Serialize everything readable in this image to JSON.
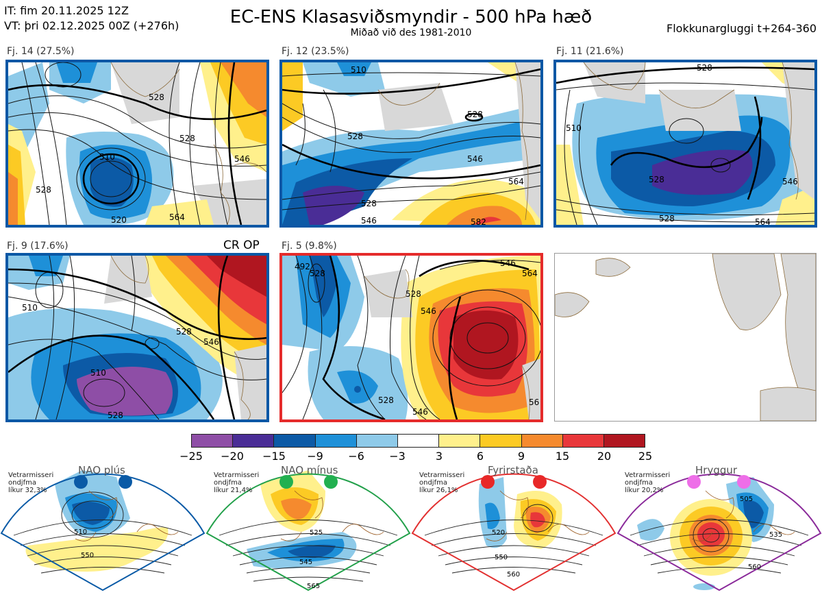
{
  "header": {
    "it_line": "IT: fim 20.11.2025 12Z",
    "vt_line": "VT: þri 02.12.2025 00Z  (+276h)",
    "title": "EC-ENS Klasasviðsmyndir - 500 hPa hæð",
    "subtitle": "Miðað við des 1981-2010",
    "window": "Flokkunargluggi t+264-360"
  },
  "panels": [
    {
      "label": "Fj. 14 (27.5%)",
      "contours": [
        "510",
        "528",
        "528",
        "528",
        "546",
        "564",
        "520"
      ]
    },
    {
      "label": "Fj. 12 (23.5%)",
      "contours": [
        "510",
        "528",
        "528",
        "546",
        "564",
        "528",
        "546",
        "582"
      ]
    },
    {
      "label": "Fj. 11 (21.6%)",
      "contours": [
        "528",
        "510",
        "528",
        "546",
        "528",
        "564"
      ]
    },
    {
      "label": "Fj. 9 (17.6%)",
      "contours": [
        "510",
        "528",
        "546",
        "510",
        "528"
      ],
      "tag": "CR OP"
    },
    {
      "label": "Fj. 5 (9.8%)",
      "contours": [
        "492",
        "528",
        "528",
        "546",
        "546",
        "564",
        "528",
        "546",
        "56"
      ]
    }
  ],
  "colorbar": {
    "ticks": [
      "−25",
      "−20",
      "−15",
      "−9",
      "−6",
      "−3",
      "3",
      "6",
      "9",
      "15",
      "20",
      "25"
    ],
    "colors": [
      "#8e4ea6",
      "#4a2d96",
      "#0c5aa6",
      "#1e90d8",
      "#8ecae9",
      "#ffffff",
      "#fff08c",
      "#fcca24",
      "#f58a2e",
      "#e8373a",
      "#b01620"
    ]
  },
  "regimes": [
    {
      "name": "NAO plús",
      "note": [
        "Vetrarmisseri",
        "ondjfma",
        "líkur 32,3%"
      ],
      "color": "#0a5aa6",
      "dot": "#0a5aa6",
      "labels": [
        "510",
        "550"
      ]
    },
    {
      "name": "NAO mínus",
      "note": [
        "Vetrarmisseri",
        "ondjfma",
        "líkur 21,4%"
      ],
      "color": "#22a04a",
      "dot": "#22b050",
      "labels": [
        "525",
        "545",
        "565"
      ]
    },
    {
      "name": "Fyrirstaða",
      "note": [
        "Vetrarmisseri",
        "ondjfma",
        "líkur 26,1%"
      ],
      "color": "#e23030",
      "dot": "#e82828",
      "labels": [
        "520",
        "550",
        "560"
      ]
    },
    {
      "name": "Hryggur",
      "note": [
        "Vetrarmisseri",
        "ondjfma",
        "líkur 20,2%"
      ],
      "color": "#8a2a9a",
      "dot": "#ee6ee8",
      "labels": [
        "505",
        "535",
        "560"
      ]
    }
  ]
}
